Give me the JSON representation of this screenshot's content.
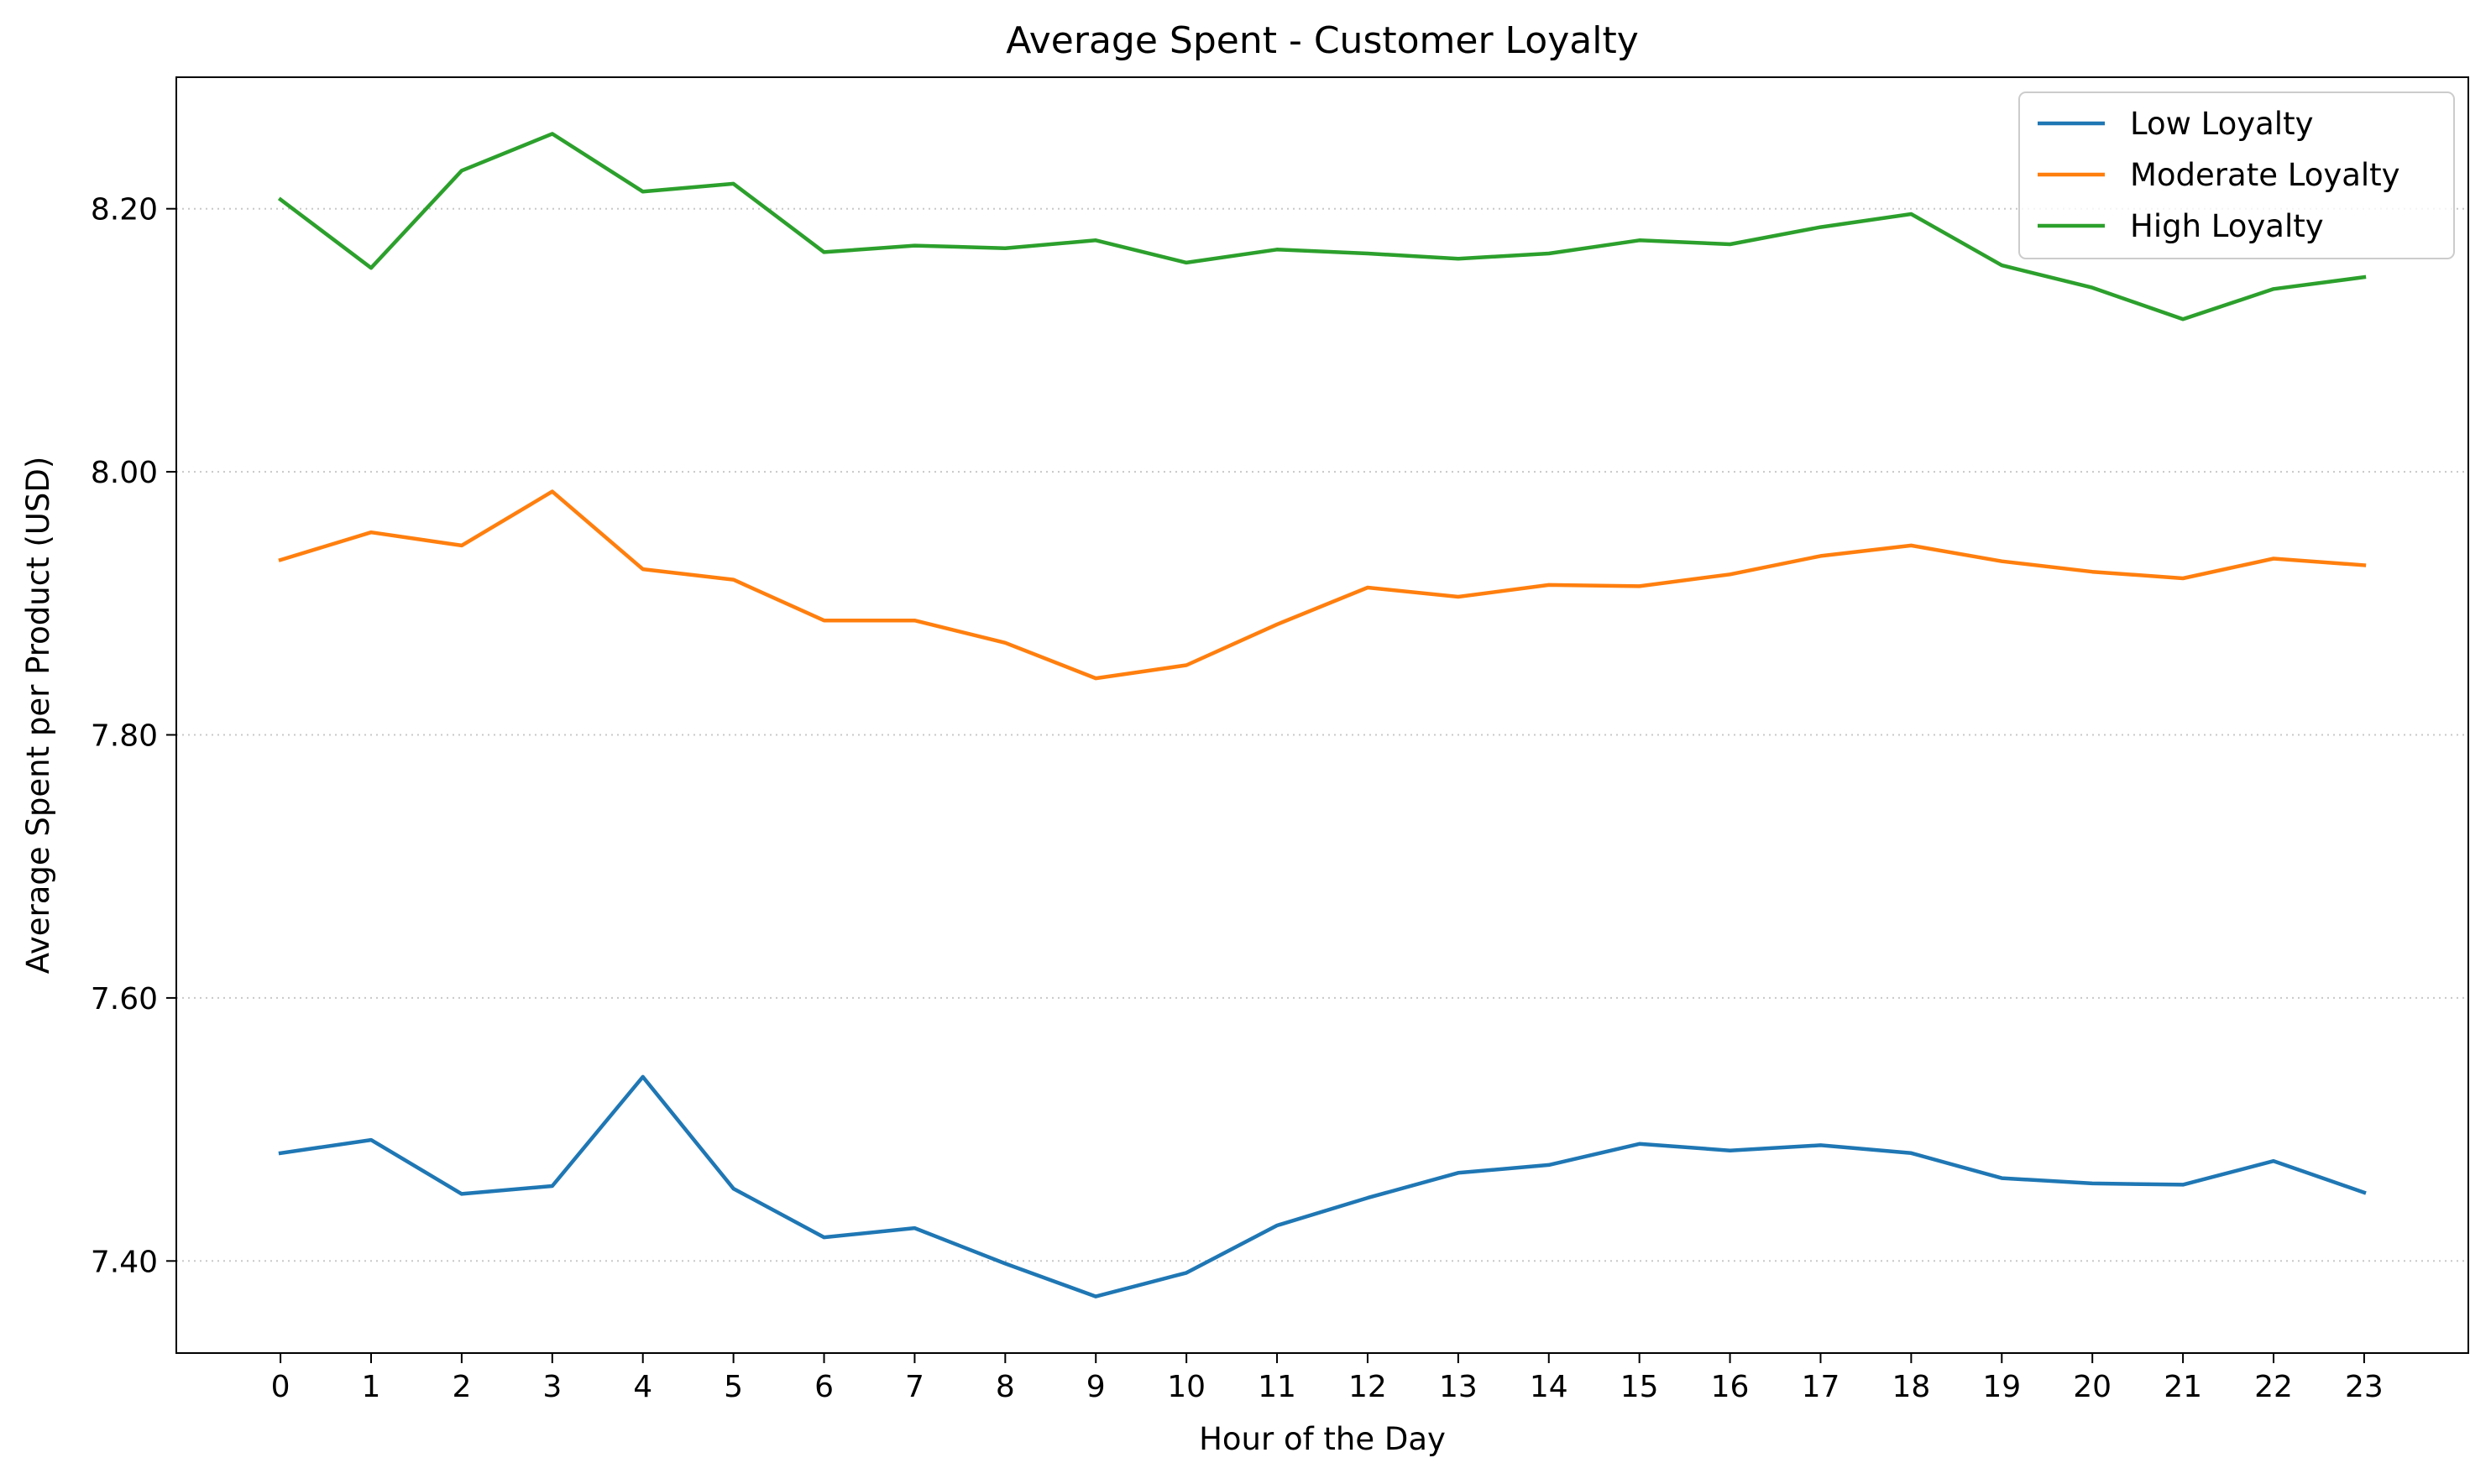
{
  "chart_data": {
    "type": "line",
    "title": "Average Spent - Customer Loyalty",
    "xlabel": "Hour of the Day",
    "ylabel": "Average Spent per Product (USD)",
    "x": [
      0,
      1,
      2,
      3,
      4,
      5,
      6,
      7,
      8,
      9,
      10,
      11,
      12,
      13,
      14,
      15,
      16,
      17,
      18,
      19,
      20,
      21,
      22,
      23
    ],
    "xlim": [
      -1.15,
      24.15
    ],
    "ylim": [
      7.33,
      8.3
    ],
    "yticks": [
      7.4,
      7.6,
      7.8,
      8.0,
      8.2
    ],
    "ytick_labels": [
      "7.40",
      "7.60",
      "7.80",
      "8.00",
      "8.20"
    ],
    "grid": "horizontal dotted",
    "legend_position": "top-right",
    "series": [
      {
        "name": "Low Loyalty",
        "color": "#1f77b4",
        "values": [
          7.482,
          7.492,
          7.451,
          7.457,
          7.54,
          7.455,
          7.418,
          7.425,
          7.398,
          7.373,
          7.391,
          7.427,
          7.448,
          7.467,
          7.473,
          7.489,
          7.484,
          7.488,
          7.482,
          7.463,
          7.459,
          7.458,
          7.476,
          7.452
        ]
      },
      {
        "name": "Moderate Loyalty",
        "color": "#ff7f0e",
        "values": [
          7.933,
          7.954,
          7.944,
          7.985,
          7.926,
          7.918,
          7.887,
          7.887,
          7.87,
          7.843,
          7.853,
          7.884,
          7.912,
          7.905,
          7.914,
          7.913,
          7.922,
          7.936,
          7.944,
          7.932,
          7.924,
          7.919,
          7.934,
          7.929
        ]
      },
      {
        "name": "High Loyalty",
        "color": "#2ca02c",
        "values": [
          8.207,
          8.155,
          8.229,
          8.257,
          8.213,
          8.219,
          8.167,
          8.172,
          8.17,
          8.176,
          8.159,
          8.169,
          8.166,
          8.162,
          8.166,
          8.176,
          8.173,
          8.186,
          8.196,
          8.157,
          8.14,
          8.116,
          8.139,
          8.148
        ]
      }
    ]
  }
}
